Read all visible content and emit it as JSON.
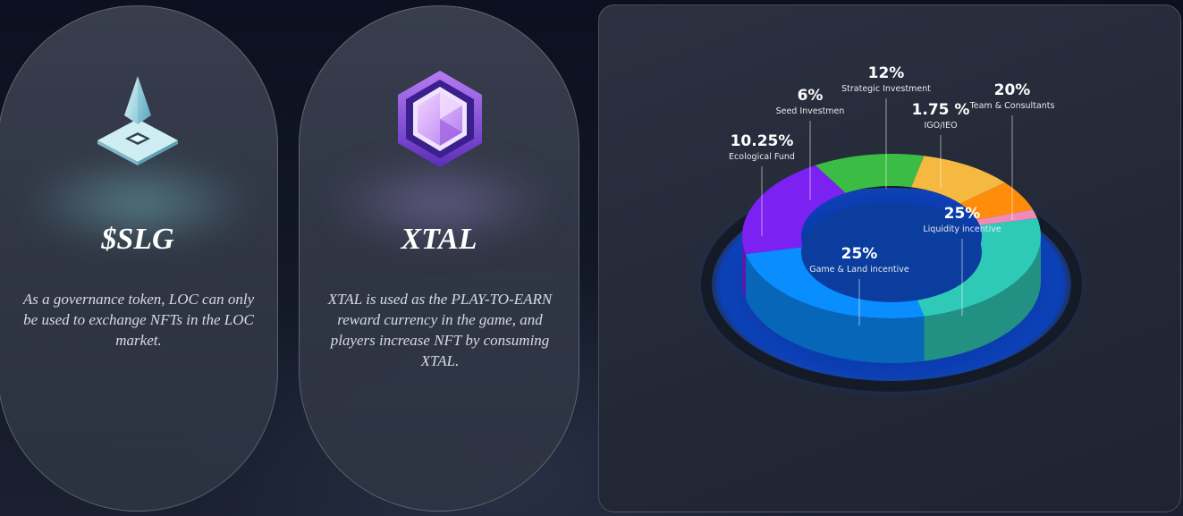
{
  "cards": [
    {
      "name": "$SLG",
      "icon": "pyramid-icon",
      "description": "As a governance token, LOC can only be used to exchange NFTs in the LOC market."
    },
    {
      "name": "XTAL",
      "icon": "crystal-hexagon-icon",
      "description": "XTAL is used as the PLAY-TO-EARN reward currency in the game, and players increase NFT by consuming XTAL."
    }
  ],
  "chart_data": {
    "type": "pie",
    "style": "3d-donut",
    "slices": [
      {
        "label": "Liquidity incentive",
        "display": "25%",
        "value": 25,
        "color": "#2fc9b8"
      },
      {
        "label": "Game & Land incentive",
        "display": "25%",
        "value": 25,
        "color": "#0a8dff"
      },
      {
        "label": "Team & Consultants",
        "display": "20%",
        "value": 20,
        "color": "#7b22f2"
      },
      {
        "label": "Strategic Investment",
        "display": "12%",
        "value": 12,
        "color": "#3bbd45"
      },
      {
        "label": "Ecological Fund",
        "display": "10.25%",
        "value": 10.25,
        "color": "#f5b840"
      },
      {
        "label": "Seed Investmen",
        "display": "6%",
        "value": 6,
        "color": "#ff8c0a"
      },
      {
        "label": "IGO/IEO",
        "display": "1.75 %",
        "value": 1.75,
        "color": "#f28ab8"
      }
    ]
  }
}
